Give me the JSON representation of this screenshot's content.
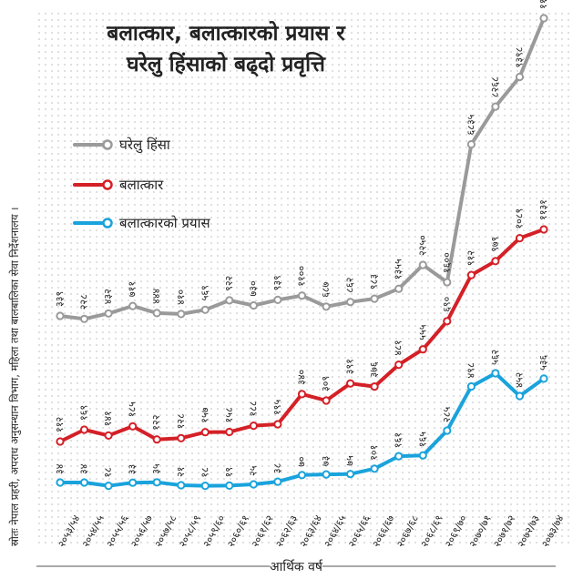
{
  "chart_data": {
    "type": "line",
    "title": [
      "बलात्कार, बलात्कारको प्रयास र",
      "घरेलु हिंसाको बढ्दो प्रवृत्ति"
    ],
    "xlabel": "आर्थिक वर्ष",
    "ylabel": "",
    "source": "स्रोतः नेपाल प्रहरी, अपराध अनुसन्धान विभाग, महिला तथा बालबालिका सेवा निर्देशनालय ।",
    "categories": [
      "२०५३/५४",
      "२०५४/५५",
      "२०५५/५६",
      "२०५६/५७",
      "२०५७/५८",
      "२०५८/५९",
      "२०५९/६०",
      "२०६०/६१",
      "२०६१/६२",
      "२०६२/६३",
      "२०६३/६४",
      "२०६४/६५",
      "२०६५/६६",
      "२०६६/६७",
      "२०६७/६८",
      "२०६८/६९",
      "२०६९/७०",
      "२०७०/७१",
      "२०७१/७२",
      "२०७२/७३",
      "२०७३/७४"
    ],
    "series": [
      {
        "name": "घरेलु हिंसा",
        "color": "#9a9a9a",
        "values": [
          339,
          228,
          432,
          711,
          444,
          410,
          569,
          922,
          730,
          939,
          1100,
          687,
          862,
          983,
          1355,
          2250,
          1600,
          6835,
          8268,
          9398,
          11629
        ],
        "labels": [
          "३३९",
          "२२८",
          "४३२",
          "७११",
          "४४४",
          "४१०",
          "५६९",
          "९२२",
          "७३०",
          "९३९",
          "११००",
          "६८७",
          "८६२",
          "९८३",
          "१३५५",
          "२२५०",
          "१६००",
          "६८३५",
          "८२६८",
          "९३९८",
          "११६२९"
        ]
      },
      {
        "name": "बलात्कार",
        "color": "#d42027",
        "values": [
          112,
          169,
          141,
          185,
          122,
          128,
          157,
          158,
          188,
          195,
          340,
          309,
          391,
          376,
          481,
          555,
          690,
          912,
          979,
          1089,
          1131
        ],
        "labels": [
          "११२",
          "१६९",
          "१४१",
          "१८५",
          "१२२",
          "१२८",
          "१५७",
          "१५८",
          "१८८",
          "१९५",
          "३४०",
          "३०९",
          "३९१",
          "३७६",
          "४८१",
          "५५५",
          "६९०",
          "९१२",
          "९७९",
          "१०८९",
          "११३१"
        ]
      },
      {
        "name": "बलात्कारको प्रयास",
        "color": "#1aa3dc",
        "values": [
          34,
          34,
          18,
          33,
          35,
          21,
          18,
          19,
          25,
          38,
          70,
          73,
          75,
          101,
          161,
          165,
          285,
          498,
          562,
          452,
          536
        ],
        "labels": [
          "३४",
          "३४",
          "१८",
          "३३",
          "३५",
          "२१",
          "१८",
          "१९",
          "२५",
          "३८",
          "७०",
          "७३",
          "७५",
          "१०१",
          "१६१",
          "१६५",
          "२८५",
          "४९८",
          "५६२",
          "४५२",
          "५३६"
        ]
      }
    ],
    "grid": "dotted",
    "legend_position": "left"
  }
}
